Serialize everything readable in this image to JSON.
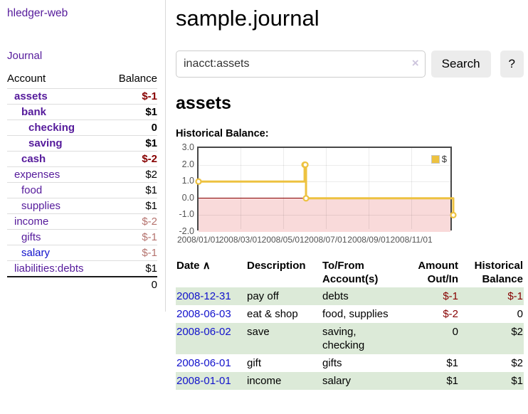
{
  "colors": {
    "purple": "#551a9b",
    "blue": "#1111cc",
    "black": "#000000",
    "negative": "#870000",
    "negative_muted": "#b5736e",
    "row_highlight": "#dcead8",
    "series_gold": "#edc240",
    "negative_region": "#f9dada",
    "zero_line": "#870000"
  },
  "sidebar": {
    "brand": "hledger-web",
    "nav_journal": "Journal",
    "columns": {
      "account": "Account",
      "balance": "Balance"
    },
    "accounts": [
      {
        "name": "assets",
        "depth": 1,
        "bold": true,
        "color": "purple",
        "balance": "$-1",
        "balance_color": "negative"
      },
      {
        "name": "bank",
        "depth": 2,
        "bold": true,
        "color": "purple",
        "balance": "$1",
        "balance_color": "black"
      },
      {
        "name": "checking",
        "depth": 3,
        "bold": true,
        "color": "purple",
        "balance": "0",
        "balance_color": "black"
      },
      {
        "name": "saving",
        "depth": 3,
        "bold": true,
        "color": "purple",
        "balance": "$1",
        "balance_color": "black"
      },
      {
        "name": "cash",
        "depth": 2,
        "bold": true,
        "color": "purple",
        "balance": "$-2",
        "balance_color": "negative"
      },
      {
        "name": "expenses",
        "depth": 1,
        "bold": false,
        "color": "purple",
        "balance": "$2",
        "balance_color": "black"
      },
      {
        "name": "food",
        "depth": 2,
        "bold": false,
        "color": "purple",
        "balance": "$1",
        "balance_color": "black"
      },
      {
        "name": "supplies",
        "depth": 2,
        "bold": false,
        "color": "purple",
        "balance": "$1",
        "balance_color": "black"
      },
      {
        "name": "income",
        "depth": 1,
        "bold": false,
        "color": "purple",
        "balance": "$-2",
        "balance_color": "negative_muted"
      },
      {
        "name": "gifts",
        "depth": 2,
        "bold": false,
        "color": "purple",
        "balance": "$-1",
        "balance_color": "negative_muted"
      },
      {
        "name": "salary",
        "depth": 2,
        "bold": false,
        "color": "blue",
        "balance": "$-1",
        "balance_color": "negative_muted"
      },
      {
        "name": "liabilities:debts",
        "depth": 1,
        "bold": false,
        "color": "purple",
        "balance": "$1",
        "balance_color": "black"
      }
    ],
    "total": "0"
  },
  "header": {
    "title": "sample.journal"
  },
  "search": {
    "value": "inacct:assets",
    "clear": "×",
    "button": "Search",
    "help": "?"
  },
  "account_page": {
    "heading": "assets",
    "chart_label": "Historical Balance:"
  },
  "chart_data": {
    "type": "line",
    "step": true,
    "title": "Historical Balance:",
    "legend": [
      {
        "label": "$",
        "color": "#edc240"
      }
    ],
    "ylim": [
      -2,
      3
    ],
    "xlim": [
      "2008-01-01",
      "2008-12-31"
    ],
    "grid": true,
    "y_ticks": [
      {
        "label": "3.0",
        "value": 3
      },
      {
        "label": "2.0",
        "value": 2
      },
      {
        "label": "1.0",
        "value": 1
      },
      {
        "label": "0.0",
        "value": 0
      },
      {
        "label": "-1.0",
        "value": -1
      },
      {
        "label": "-2.0",
        "value": -2
      }
    ],
    "x_ticks": [
      {
        "label": "2008/01/01",
        "date": "2008-01-01"
      },
      {
        "label": "2008/03/01",
        "date": "2008-03-01"
      },
      {
        "label": "2008/05/01",
        "date": "2008-05-01"
      },
      {
        "label": "2008/07/01",
        "date": "2008-07-01"
      },
      {
        "label": "2008/09/01",
        "date": "2008-09-01"
      },
      {
        "label": "2008/11/01",
        "date": "2008-11-01"
      }
    ],
    "series": [
      {
        "name": "$",
        "color": "#edc240",
        "points": [
          {
            "date": "2008-01-01",
            "value": 1
          },
          {
            "date": "2008-06-01",
            "value": 2
          },
          {
            "date": "2008-06-02",
            "value": 2
          },
          {
            "date": "2008-06-03",
            "value": 0
          },
          {
            "date": "2008-12-31",
            "value": -1
          }
        ]
      }
    ],
    "negative_region": {
      "from": -2,
      "to": 0,
      "color": "#f9dada"
    },
    "zero_line_color": "#870000"
  },
  "register": {
    "headers": [
      {
        "label": "Date",
        "sort": "∧",
        "align": "left"
      },
      {
        "label": "Description",
        "align": "left"
      },
      {
        "label": "To/From Account(s)",
        "align": "left"
      },
      {
        "label": "Amount Out/In",
        "align": "right"
      },
      {
        "label": "Historical Balance",
        "align": "right"
      }
    ],
    "rows": [
      {
        "date": "2008-12-31",
        "description": "pay off",
        "accounts": "debts",
        "amount": "$-1",
        "amount_negative": true,
        "balance": "$-1",
        "balance_negative": true
      },
      {
        "date": "2008-06-03",
        "description": "eat & shop",
        "accounts": "food, supplies",
        "amount": "$-2",
        "amount_negative": true,
        "balance": "0",
        "balance_negative": false
      },
      {
        "date": "2008-06-02",
        "description": "save",
        "accounts": "saving,\nchecking",
        "amount": "0",
        "amount_negative": false,
        "balance": "$2",
        "balance_negative": false
      },
      {
        "date": "2008-06-01",
        "description": "gift",
        "accounts": "gifts",
        "amount": "$1",
        "amount_negative": false,
        "balance": "$2",
        "balance_negative": false
      },
      {
        "date": "2008-01-01",
        "description": "income",
        "accounts": "salary",
        "amount": "$1",
        "amount_negative": false,
        "balance": "$1",
        "balance_negative": false
      }
    ]
  }
}
